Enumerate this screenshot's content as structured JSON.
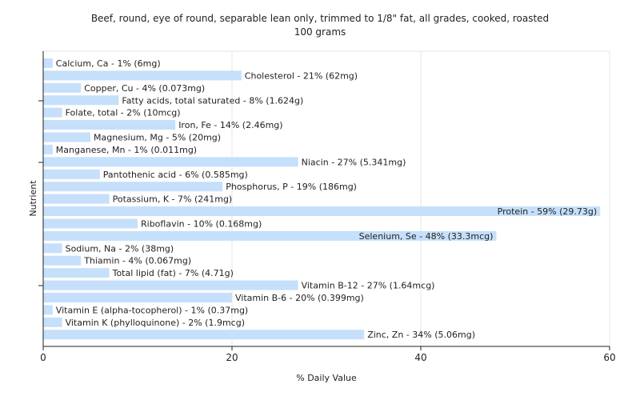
{
  "chart_data": {
    "type": "bar",
    "orientation": "horizontal",
    "title": "Beef, round, eye of round, separable lean only, trimmed to 1/8\" fat, all grades, cooked, roasted",
    "subtitle": "100 grams",
    "xlabel": "% Daily Value",
    "ylabel": "Nutrient",
    "xlim": [
      0,
      60
    ],
    "xticks": [
      "0",
      "20",
      "40",
      "60"
    ],
    "grid": true,
    "bar_color": "#c6dffb",
    "categories": [
      "Calcium, Ca",
      "Cholesterol",
      "Copper, Cu",
      "Fatty acids, total saturated",
      "Folate, total",
      "Iron, Fe",
      "Magnesium, Mg",
      "Manganese, Mn",
      "Niacin",
      "Pantothenic acid",
      "Phosphorus, P",
      "Potassium, K",
      "Protein",
      "Riboflavin",
      "Selenium, Se",
      "Sodium, Na",
      "Thiamin",
      "Total lipid (fat)",
      "Vitamin B-12",
      "Vitamin B-6",
      "Vitamin E (alpha-tocopherol)",
      "Vitamin K (phylloquinone)",
      "Zinc, Zn"
    ],
    "values": [
      1,
      21,
      4,
      8,
      2,
      14,
      5,
      1,
      27,
      6,
      19,
      7,
      59,
      10,
      48,
      2,
      4,
      7,
      27,
      20,
      1,
      2,
      34
    ],
    "labels": [
      "Calcium, Ca - 1% (6mg)",
      "Cholesterol - 21% (62mg)",
      "Copper, Cu - 4% (0.073mg)",
      "Fatty acids, total saturated - 8% (1.624g)",
      "Folate, total - 2% (10mcg)",
      "Iron, Fe - 14% (2.46mg)",
      "Magnesium, Mg - 5% (20mg)",
      "Manganese, Mn - 1% (0.011mg)",
      "Niacin - 27% (5.341mg)",
      "Pantothenic acid - 6% (0.585mg)",
      "Phosphorus, P - 19% (186mg)",
      "Potassium, K - 7% (241mg)",
      "Protein - 59% (29.73g)",
      "Riboflavin - 10% (0.168mg)",
      "Selenium, Se - 48% (33.3mcg)",
      "Sodium, Na - 2% (38mg)",
      "Thiamin - 4% (0.067mg)",
      "Total lipid (fat) - 7% (4.71g)",
      "Vitamin B-12 - 27% (1.64mcg)",
      "Vitamin B-6 - 20% (0.399mg)",
      "Vitamin E (alpha-tocopherol) - 1% (0.37mg)",
      "Vitamin K (phylloquinone) - 2% (1.9mcg)",
      "Zinc, Zn - 34% (5.06mg)"
    ]
  }
}
